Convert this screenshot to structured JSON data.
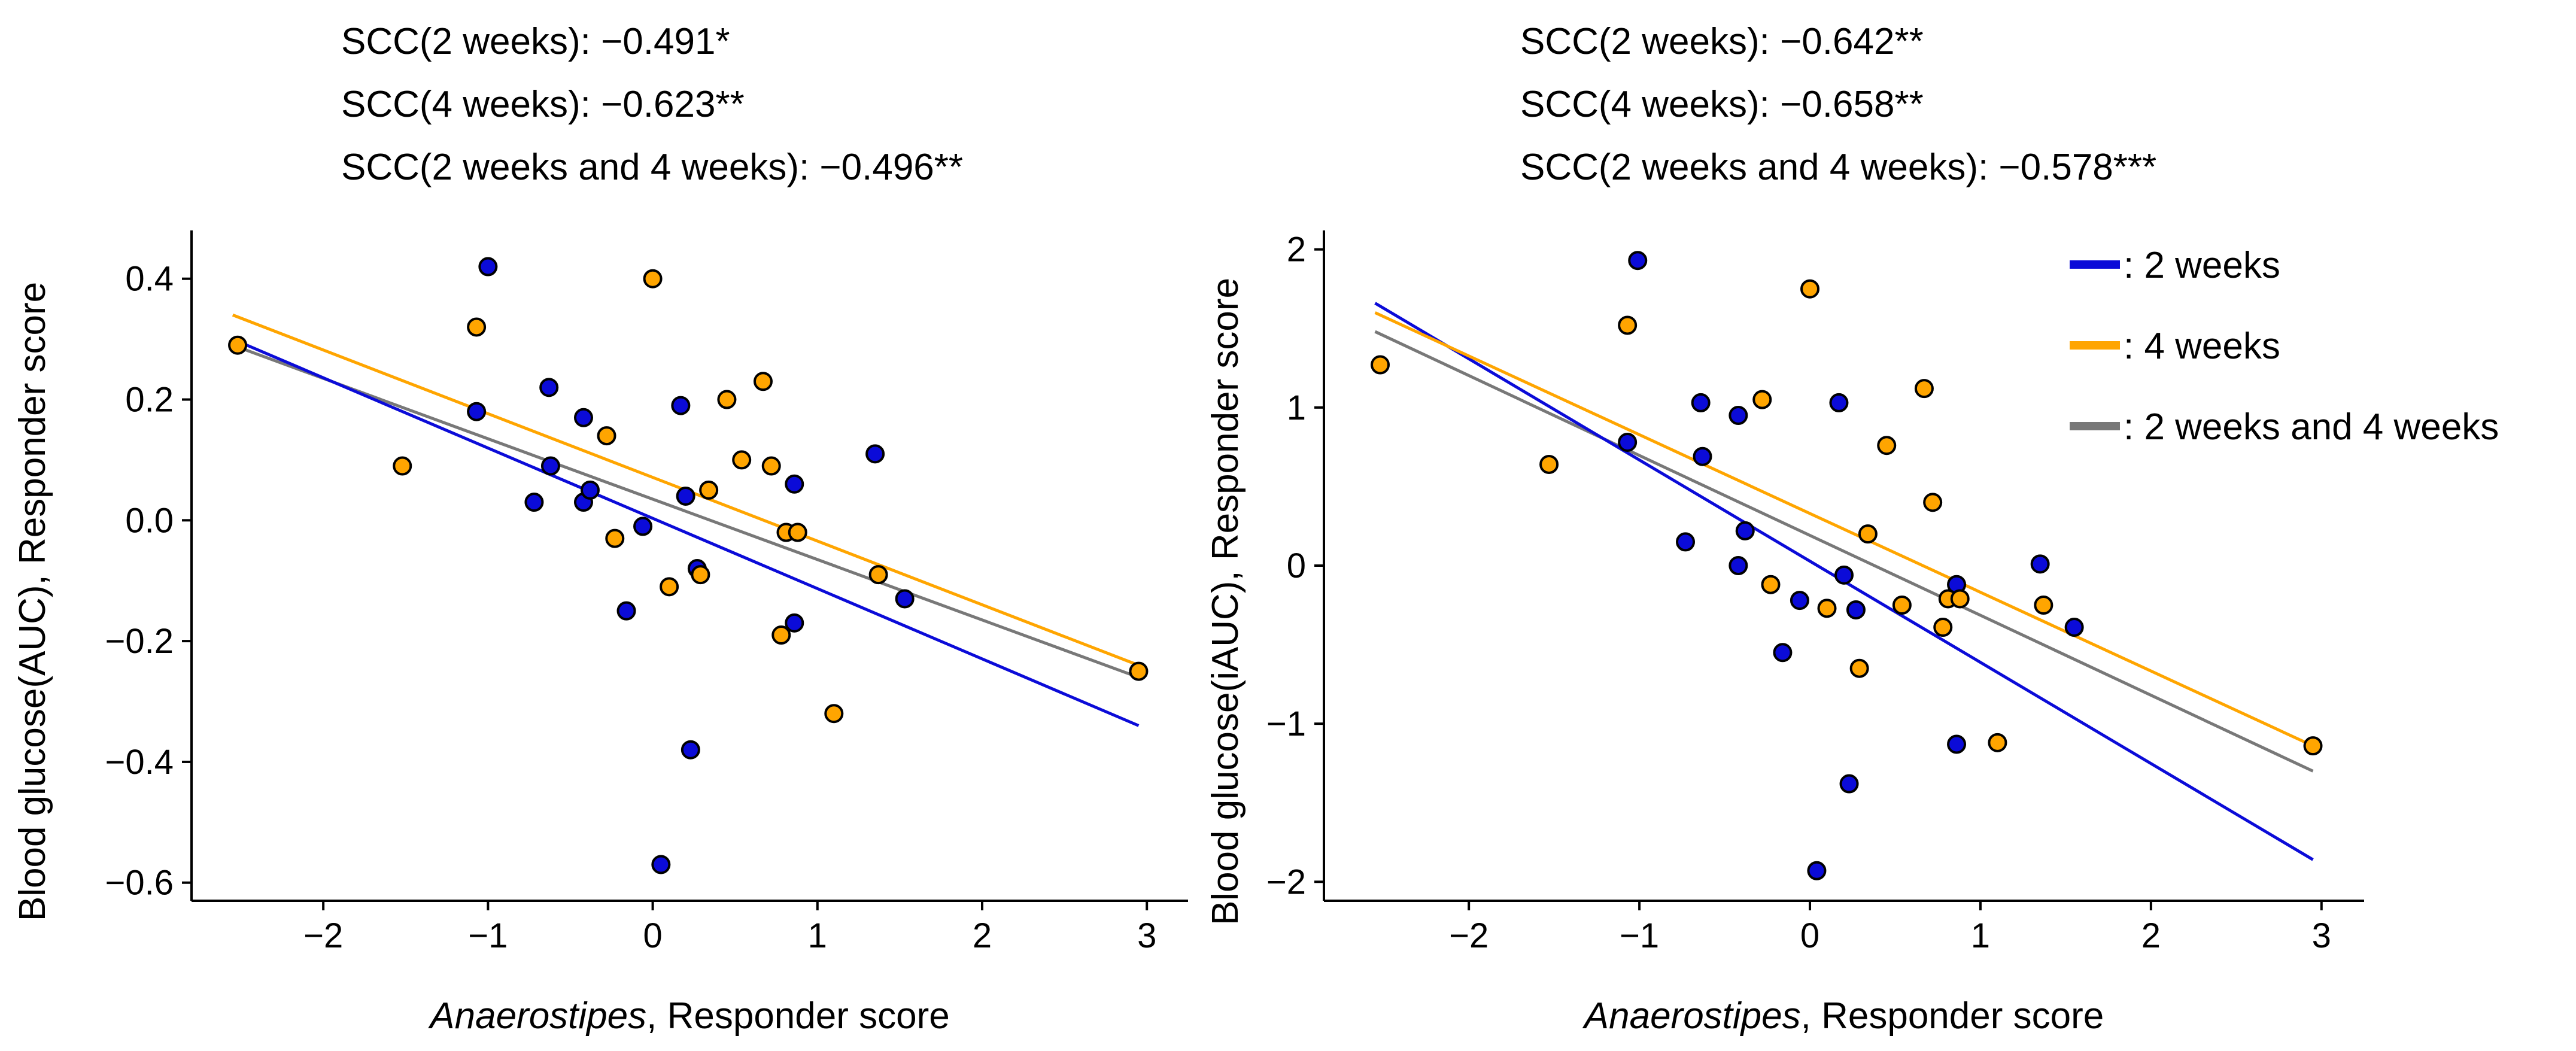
{
  "chart_data": [
    {
      "type": "scatter",
      "title": "",
      "annotations": [
        "SCC(2  weeks): −0.491*",
        "SCC(4  weeks): −0.623**",
        "SCC(2  weeks and 4 weeks): −0.496**"
      ],
      "xlabel_italic": "Anaerostipes",
      "xlabel_rest": ", Responder score",
      "ylabel": "Blood glucose(AUC),  Responder score",
      "xlim": [
        -2.8,
        3.25
      ],
      "ylim": [
        -0.63,
        0.48
      ],
      "xticks": [
        -2,
        -1,
        0,
        1,
        2,
        3
      ],
      "xtick_labels": [
        "−2",
        "−1",
        "0",
        "1",
        "2",
        "3"
      ],
      "yticks": [
        0.4,
        0.2,
        0.0,
        -0.2,
        -0.4,
        -0.6
      ],
      "ytick_labels": [
        "0.4",
        "0.2",
        "0.0",
        "−0.2",
        "−0.4",
        "−0.6"
      ],
      "series": [
        {
          "name": "2 weeks",
          "color": "#0b0bd8",
          "points": [
            [
              -1.07,
              0.18
            ],
            [
              -1.0,
              0.42
            ],
            [
              -0.72,
              0.03
            ],
            [
              -0.62,
              0.09
            ],
            [
              -0.63,
              0.22
            ],
            [
              -0.42,
              0.17
            ],
            [
              -0.42,
              0.03
            ],
            [
              -0.38,
              0.05
            ],
            [
              -0.16,
              -0.15
            ],
            [
              -0.06,
              -0.01
            ],
            [
              0.05,
              -0.57
            ],
            [
              0.17,
              0.19
            ],
            [
              0.2,
              0.04
            ],
            [
              0.23,
              -0.38
            ],
            [
              0.27,
              -0.08
            ],
            [
              0.86,
              0.06
            ],
            [
              0.86,
              -0.17
            ],
            [
              1.35,
              0.11
            ],
            [
              1.53,
              -0.13
            ]
          ],
          "fit": [
            [
              -2.55,
              0.3
            ],
            [
              2.95,
              -0.34
            ]
          ]
        },
        {
          "name": "4 weeks",
          "color": "#ffa500",
          "points": [
            [
              -2.52,
              0.29
            ],
            [
              -1.52,
              0.09
            ],
            [
              -1.07,
              0.32
            ],
            [
              -0.28,
              0.14
            ],
            [
              -0.23,
              -0.03
            ],
            [
              0.0,
              0.4
            ],
            [
              0.1,
              -0.11
            ],
            [
              0.29,
              -0.09
            ],
            [
              0.34,
              0.05
            ],
            [
              0.45,
              0.2
            ],
            [
              0.54,
              0.1
            ],
            [
              0.67,
              0.23
            ],
            [
              0.72,
              0.09
            ],
            [
              0.78,
              -0.19
            ],
            [
              0.81,
              -0.02
            ],
            [
              0.88,
              -0.02
            ],
            [
              1.1,
              -0.32
            ],
            [
              1.37,
              -0.09
            ],
            [
              2.95,
              -0.25
            ]
          ],
          "fit": [
            [
              -2.55,
              0.34
            ],
            [
              2.95,
              -0.24
            ]
          ]
        },
        {
          "name": "2 weeks and 4 weeks",
          "color": "#787878",
          "points": [],
          "fit": [
            [
              -2.55,
              0.29
            ],
            [
              2.95,
              -0.26
            ]
          ]
        }
      ]
    },
    {
      "type": "scatter",
      "title": "",
      "annotations": [
        "SCC(2  weeks): −0.642**",
        "SCC(4  weeks): −0.658**",
        "SCC(2  weeks and 4 weeks): −0.578***"
      ],
      "xlabel_italic": "Anaerostipes",
      "xlabel_rest": ", Responder score",
      "ylabel": "Blood glucose(iAUC),  Responder score",
      "xlim": [
        -2.85,
        3.25
      ],
      "ylim": [
        -2.12,
        2.12
      ],
      "xticks": [
        -2,
        -1,
        0,
        1,
        2,
        3
      ],
      "xtick_labels": [
        "−2",
        "−1",
        "0",
        "1",
        "2",
        "3"
      ],
      "yticks": [
        2,
        1,
        0,
        -1,
        -2
      ],
      "ytick_labels": [
        "2",
        "1",
        "0",
        "−1",
        "−2"
      ],
      "legend": {
        "position": "top-right",
        "entries": [
          ": 2 weeks",
          ": 4 weeks",
          ": 2 weeks and 4 weeks"
        ]
      },
      "series": [
        {
          "name": "2 weeks",
          "color": "#0b0bd8",
          "points": [
            [
              -1.07,
              0.78
            ],
            [
              -1.01,
              1.93
            ],
            [
              -0.73,
              0.15
            ],
            [
              -0.63,
              0.69
            ],
            [
              -0.64,
              1.03
            ],
            [
              -0.42,
              0.95
            ],
            [
              -0.42,
              0.0
            ],
            [
              -0.38,
              0.22
            ],
            [
              -0.16,
              -0.55
            ],
            [
              -0.06,
              -0.22
            ],
            [
              0.04,
              -1.93
            ],
            [
              0.17,
              1.03
            ],
            [
              0.2,
              -0.06
            ],
            [
              0.23,
              -1.38
            ],
            [
              0.27,
              -0.28
            ],
            [
              0.86,
              -0.12
            ],
            [
              0.86,
              -1.13
            ],
            [
              1.35,
              0.01
            ],
            [
              1.55,
              -0.39
            ]
          ],
          "fit": [
            [
              -2.55,
              1.66
            ],
            [
              2.95,
              -1.86
            ]
          ]
        },
        {
          "name": "4 weeks",
          "color": "#ffa500",
          "points": [
            [
              -2.52,
              1.27
            ],
            [
              -1.53,
              0.64
            ],
            [
              -1.07,
              1.52
            ],
            [
              -0.28,
              1.05
            ],
            [
              -0.23,
              -0.12
            ],
            [
              0.0,
              1.75
            ],
            [
              0.1,
              -0.27
            ],
            [
              0.29,
              -0.65
            ],
            [
              0.34,
              0.2
            ],
            [
              0.45,
              0.76
            ],
            [
              0.54,
              -0.25
            ],
            [
              0.67,
              1.12
            ],
            [
              0.72,
              0.4
            ],
            [
              0.78,
              -0.39
            ],
            [
              0.81,
              -0.21
            ],
            [
              0.88,
              -0.21
            ],
            [
              1.1,
              -1.12
            ],
            [
              1.37,
              -0.25
            ],
            [
              2.95,
              -1.14
            ]
          ],
          "fit": [
            [
              -2.55,
              1.6
            ],
            [
              2.95,
              -1.14
            ]
          ]
        },
        {
          "name": "2 weeks and 4 weeks",
          "color": "#787878",
          "points": [],
          "fit": [
            [
              -2.55,
              1.48
            ],
            [
              2.95,
              -1.3
            ]
          ]
        }
      ]
    }
  ]
}
